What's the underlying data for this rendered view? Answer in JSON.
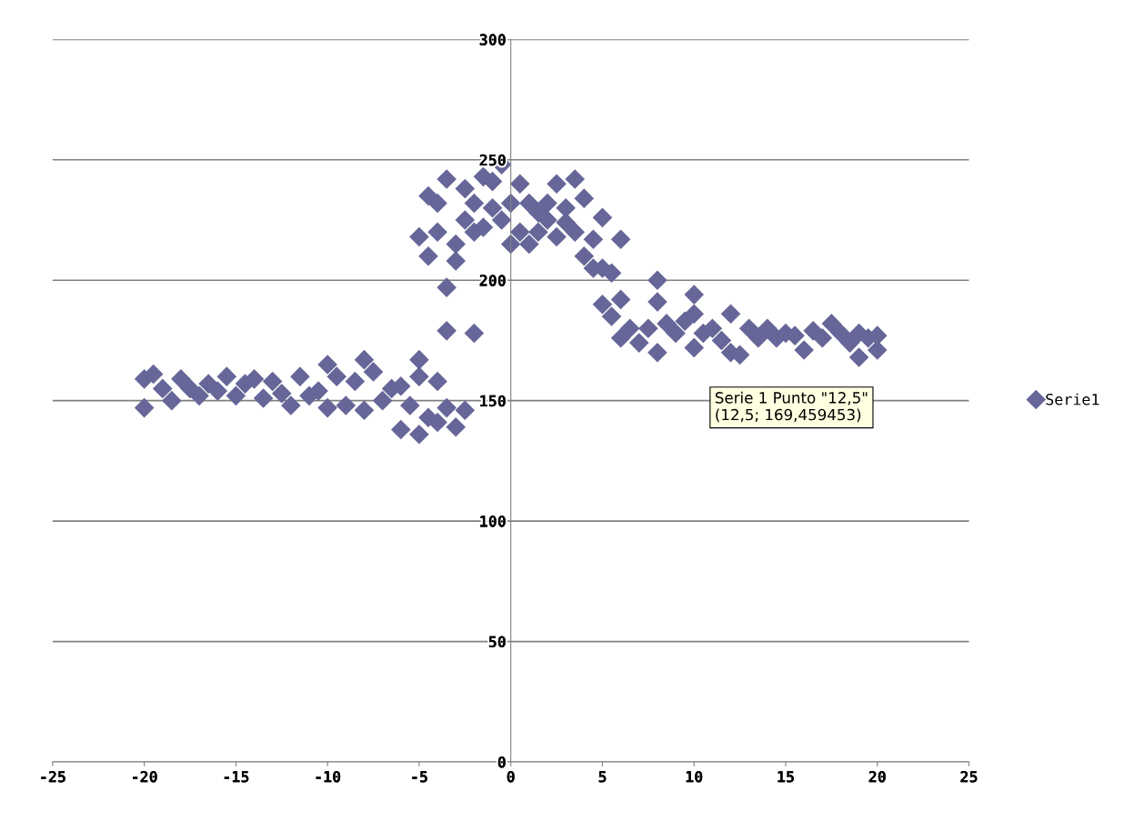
{
  "chart_data": {
    "type": "scatter",
    "x": [
      -20,
      -20,
      -19.5,
      -19,
      -18.5,
      -18,
      -17.5,
      -17,
      -16.5,
      -16,
      -15.5,
      -15,
      -14.5,
      -14,
      -13.5,
      -13,
      -12.5,
      -12,
      -11.5,
      -11,
      -10.5,
      -10,
      -10,
      -9.5,
      -9,
      -8.5,
      -8,
      -8,
      -7.5,
      -7,
      -6.5,
      -6,
      -6,
      -5.5,
      -5,
      -5,
      -5,
      -4.5,
      -4,
      -4,
      -3.5,
      -3,
      -2.5,
      -2,
      -5,
      -4.5,
      -4.5,
      -4,
      -4,
      -3.5,
      -3.5,
      -3.5,
      -3,
      -3,
      -2.5,
      -2.5,
      -2,
      -2,
      -1.5,
      -1.5,
      -1,
      -1,
      -0.5,
      -0.5,
      0,
      0,
      0.5,
      0.5,
      1,
      1,
      1.5,
      1.5,
      2,
      2,
      2.5,
      2.5,
      3,
      3,
      3.5,
      3.5,
      4,
      4,
      4.5,
      4.5,
      5,
      5,
      5,
      5.5,
      5.5,
      6,
      6,
      6,
      6.5,
      7,
      7.5,
      8,
      8,
      8,
      8.5,
      9,
      9.5,
      10,
      10,
      10,
      10.5,
      11,
      11.5,
      12,
      12,
      12.5,
      13,
      13.5,
      14,
      14.5,
      15,
      15.5,
      16,
      16.5,
      17,
      17.5,
      18,
      18.5,
      19,
      19,
      19.5,
      20,
      20
    ],
    "series": [
      {
        "name": "Serie1",
        "color": "#666699",
        "values": [
          159,
          147,
          161,
          155,
          150,
          159,
          155,
          152,
          157,
          154,
          160,
          152,
          157,
          159,
          151,
          158,
          153,
          148,
          160,
          152,
          154,
          165,
          147,
          160,
          148,
          158,
          167,
          146,
          162,
          150,
          155,
          138,
          156,
          148,
          167,
          136,
          160,
          143,
          158,
          141,
          147,
          139,
          146,
          178,
          218,
          210,
          235,
          232,
          220,
          242,
          197,
          179,
          215,
          208,
          225,
          238,
          220,
          232,
          243,
          222,
          230,
          241,
          248,
          225,
          215,
          232,
          240,
          220,
          215,
          232,
          220,
          228,
          225,
          232,
          240,
          218,
          224,
          230,
          242,
          220,
          234,
          210,
          217,
          205,
          226,
          190,
          205,
          185,
          203,
          217,
          176,
          192,
          180,
          174,
          180,
          200,
          170,
          191,
          182,
          178,
          183,
          194,
          172,
          186,
          178,
          180,
          175,
          186,
          170,
          169,
          180,
          176,
          180,
          176,
          178,
          177,
          171,
          179,
          176,
          182,
          178,
          174,
          168,
          178,
          176,
          177,
          171
        ]
      }
    ],
    "xlim": [
      -25,
      25
    ],
    "xticks": [
      -25,
      -20,
      -15,
      -10,
      -5,
      0,
      5,
      10,
      15,
      20,
      25
    ],
    "ylim": [
      0,
      300
    ],
    "yticks": [
      0,
      50,
      100,
      150,
      200,
      250,
      300
    ],
    "grid": "y",
    "legend": "right",
    "marker": "diamond",
    "annotations": [
      {
        "text": "Serie 1 Punto \"12,5\"\n(12,5; 169,459453)",
        "x": 12.5,
        "y": 169.459453
      }
    ]
  }
}
